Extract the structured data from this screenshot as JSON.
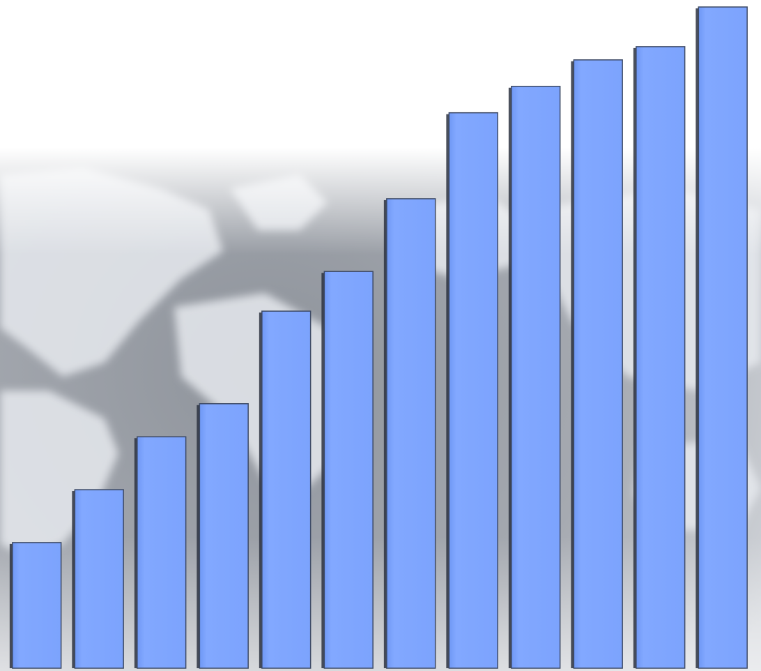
{
  "colors": {
    "bar_fill": "#7FA6FF",
    "bar_edge": "#3D4A66",
    "bar_shadow": "#2B3140",
    "background_top": "#FFFFFF",
    "map_tone": "#9A9FA8",
    "map_land": "#E4E8EE"
  },
  "background": {
    "icon": "world-map-icon"
  },
  "chart_data": {
    "type": "bar",
    "categories": [
      "",
      "",
      "",
      "",
      "",
      "",
      "",
      "",
      "",
      "",
      "",
      ""
    ],
    "values": [
      19,
      27,
      35,
      40,
      54,
      60,
      71,
      84,
      88,
      92,
      94,
      100
    ],
    "ylim": [
      0,
      100
    ],
    "grid": false,
    "legend": "none",
    "title": "",
    "xlabel": "",
    "ylabel": ""
  }
}
